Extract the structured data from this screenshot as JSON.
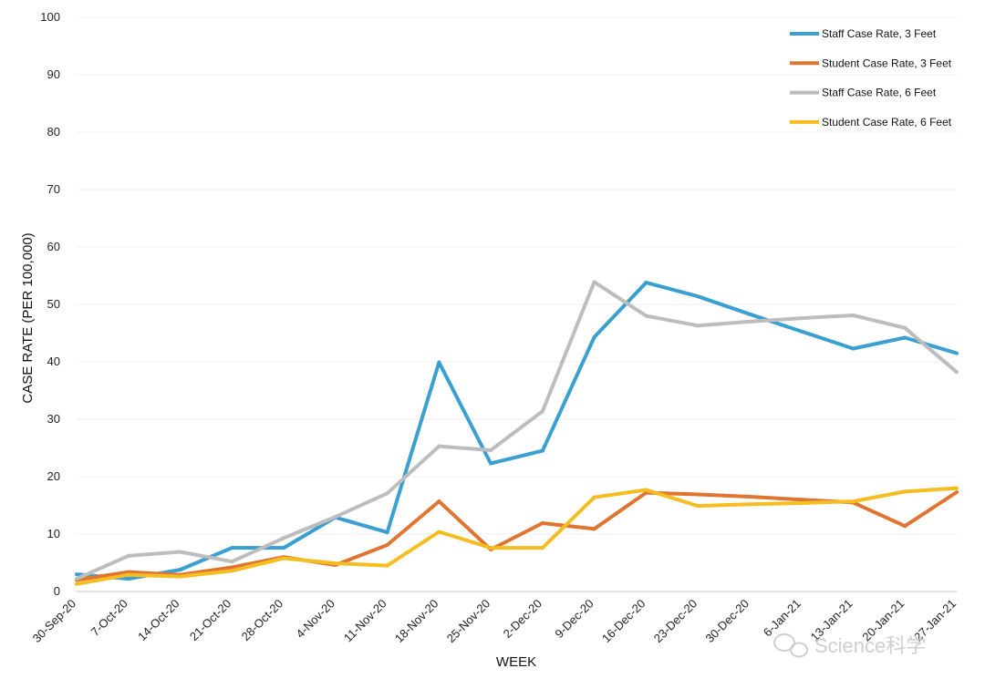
{
  "chart_data": {
    "type": "line",
    "title": "",
    "xlabel": "WEEK",
    "ylabel": "CASE RATE (PER 100,000)",
    "ylim": [
      0,
      100
    ],
    "yticks": [
      0,
      10,
      20,
      30,
      40,
      50,
      60,
      70,
      80,
      90,
      100
    ],
    "grid": true,
    "legend_position": "top-right",
    "categories": [
      "30-Sep-20",
      "7-Oct-20",
      "14-Oct-20",
      "21-Oct-20",
      "28-Oct-20",
      "4-Nov-20",
      "11-Nov-20",
      "18-Nov-20",
      "25-Nov-20",
      "2-Dec-20",
      "9-Dec-20",
      "16-Dec-20",
      "23-Dec-20",
      "30-Dec-20",
      "6-Jan-21",
      "13-Jan-21",
      "20-Jan-21",
      "27-Jan-21"
    ],
    "series": [
      {
        "name": "Staff Case Rate, 3 Feet",
        "color": "#3a9fd1",
        "values": [
          3.0,
          2.2,
          3.8,
          7.6,
          7.6,
          12.9,
          10.3,
          39.9,
          22.3,
          24.5,
          44.3,
          53.8,
          51.4,
          48.3,
          45.3,
          42.3,
          44.2,
          41.5
        ]
      },
      {
        "name": "Student Case Rate, 3 Feet",
        "color": "#e07532",
        "values": [
          2.0,
          3.4,
          2.9,
          4.2,
          6.0,
          4.6,
          8.1,
          15.7,
          7.3,
          11.9,
          10.9,
          17.2,
          16.9,
          16.5,
          16.0,
          15.5,
          11.4,
          17.3
        ]
      },
      {
        "name": "Staff Case Rate, 6 Feet",
        "color": "#bdbdbd",
        "values": [
          2.2,
          6.2,
          6.9,
          5.2,
          9.3,
          13.0,
          17.1,
          25.3,
          24.6,
          31.4,
          53.9,
          48.0,
          46.3,
          47.0,
          47.6,
          48.1,
          45.9,
          38.2
        ]
      },
      {
        "name": "Student Case Rate, 6 Feet",
        "color": "#f5bd1f",
        "values": [
          1.3,
          2.9,
          2.6,
          3.6,
          5.8,
          4.9,
          4.5,
          10.4,
          7.6,
          7.6,
          16.4,
          17.7,
          14.9,
          15.2,
          15.4,
          15.7,
          17.4,
          18.0
        ]
      }
    ],
    "watermark": "Science科学"
  }
}
